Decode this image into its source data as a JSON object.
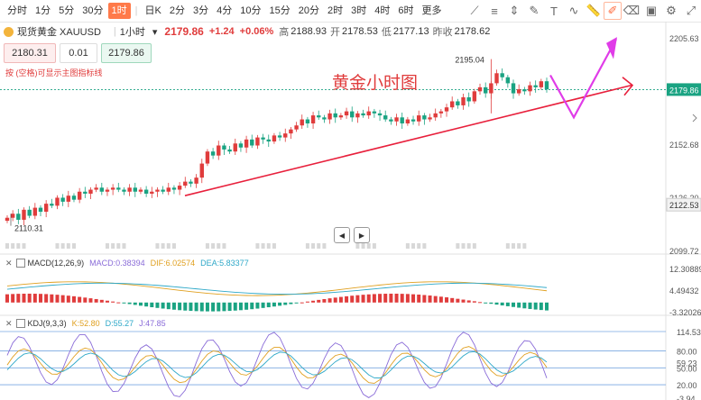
{
  "intervals": [
    "分时",
    "1分",
    "5分",
    "30分",
    "1时",
    "日K",
    "2分",
    "3分",
    "4分",
    "10分",
    "15分",
    "20分",
    "2时",
    "3时",
    "4时",
    "6时",
    "更多"
  ],
  "active_interval": "1时",
  "toolbar_icons": [
    "trend-line-icon",
    "fibonacci-icon",
    "price-range-icon",
    "brush-icon",
    "text-icon",
    "wave-icon",
    "ruler-icon",
    "edit-icon",
    "eraser-icon",
    "screenshot-icon",
    "settings-icon",
    "fullscreen-icon"
  ],
  "symbol": {
    "name": "现货黄金 XAUUSD",
    "timeframe": "1小时",
    "price": "2179.86",
    "change": "+1.24",
    "change_pct": "+0.06%",
    "high_label": "高",
    "high": "2188.93",
    "open_label": "开",
    "open": "2178.53",
    "low_label": "低",
    "low": "2177.13",
    "prev_label": "昨收",
    "prev": "2178.62"
  },
  "quote": {
    "bid": "2180.31",
    "qty": "0.01",
    "ask": "2179.86"
  },
  "hint": "按 (空格)可显示主图指标线",
  "annotation": "黄金小时图",
  "colors": {
    "up": "#e03c3c",
    "down": "#1aa382",
    "trend": "#e8203c",
    "arrow": "#e03ce8",
    "accent": "#ff7a4a"
  },
  "main_axis": {
    "ticks": [
      "2205.63",
      "2152.68",
      "2126.20",
      "2099.72"
    ],
    "current": "2179.86",
    "low_tag": "2122.53"
  },
  "macd": {
    "title": "MACD(12,26,9)",
    "macd_label": "MACD:0.38394",
    "dif_label": "DIF:6.02574",
    "dea_label": "DEA:5.83377",
    "ticks": [
      "12.30889",
      "4.49432",
      "-3.32026"
    ]
  },
  "kdj": {
    "title": "KDJ(9,3,3)",
    "k_label": "K:52.80",
    "d_label": "D:55.27",
    "j_label": "J:47.85",
    "ticks": [
      "114.53",
      "80.00",
      "59.23",
      "50.00",
      "20.00",
      "-3.94"
    ]
  },
  "chart_data": [
    {
      "type": "candlestick",
      "title": "现货黄金 XAUUSD 1小时",
      "ylim": [
        2099.72,
        2205.63
      ],
      "y_ticks": [
        2205.63,
        2152.68,
        2126.2,
        2099.72
      ],
      "annotations": [
        {
          "text": "2195.04",
          "value": 2195.04
        },
        {
          "text": "2110.31",
          "value": 2110.31
        },
        {
          "text": "黄金小时图"
        }
      ],
      "close": [
        2116,
        2118,
        2115,
        2120,
        2117,
        2121,
        2119,
        2123,
        2122,
        2126,
        2124,
        2127,
        2125,
        2129,
        2128,
        2130,
        2131,
        2129,
        2130,
        2131,
        2130,
        2129,
        2131,
        2129,
        2130,
        2128,
        2129,
        2130,
        2129,
        2131,
        2130,
        2132,
        2134,
        2133,
        2136,
        2143,
        2149,
        2147,
        2152,
        2150,
        2149,
        2153,
        2151,
        2155,
        2152,
        2156,
        2155,
        2154,
        2157,
        2156,
        2158,
        2160,
        2162,
        2165,
        2163,
        2167,
        2166,
        2165,
        2168,
        2166,
        2167,
        2169,
        2166,
        2168,
        2167,
        2169,
        2168,
        2167,
        2165,
        2164,
        2166,
        2163,
        2165,
        2164,
        2167,
        2165,
        2166,
        2168,
        2169,
        2171,
        2174,
        2172,
        2176,
        2174,
        2179,
        2181,
        2178,
        2183,
        2188,
        2186,
        2183,
        2178,
        2180,
        2179,
        2182,
        2181,
        2184,
        2180
      ],
      "series": []
    },
    {
      "type": "bar",
      "title": "MACD(12,26,9)",
      "ylim": [
        -3.32026,
        12.30889
      ],
      "series": [
        {
          "name": "MACD"
        },
        {
          "name": "DIF"
        },
        {
          "name": "DEA"
        }
      ]
    },
    {
      "type": "line",
      "title": "KDJ(9,3,3)",
      "ylim": [
        -3.94,
        114.53
      ],
      "series": [
        {
          "name": "K"
        },
        {
          "name": "D"
        },
        {
          "name": "J"
        }
      ]
    }
  ]
}
